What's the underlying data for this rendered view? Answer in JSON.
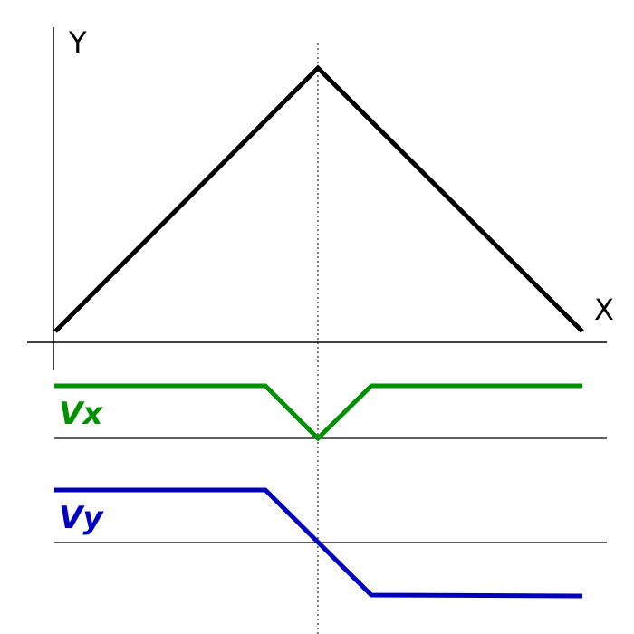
{
  "axes": {
    "y_label": "Y",
    "x_label": "X"
  },
  "traces": [
    {
      "label": "Vx"
    },
    {
      "label": "Vy"
    }
  ]
}
